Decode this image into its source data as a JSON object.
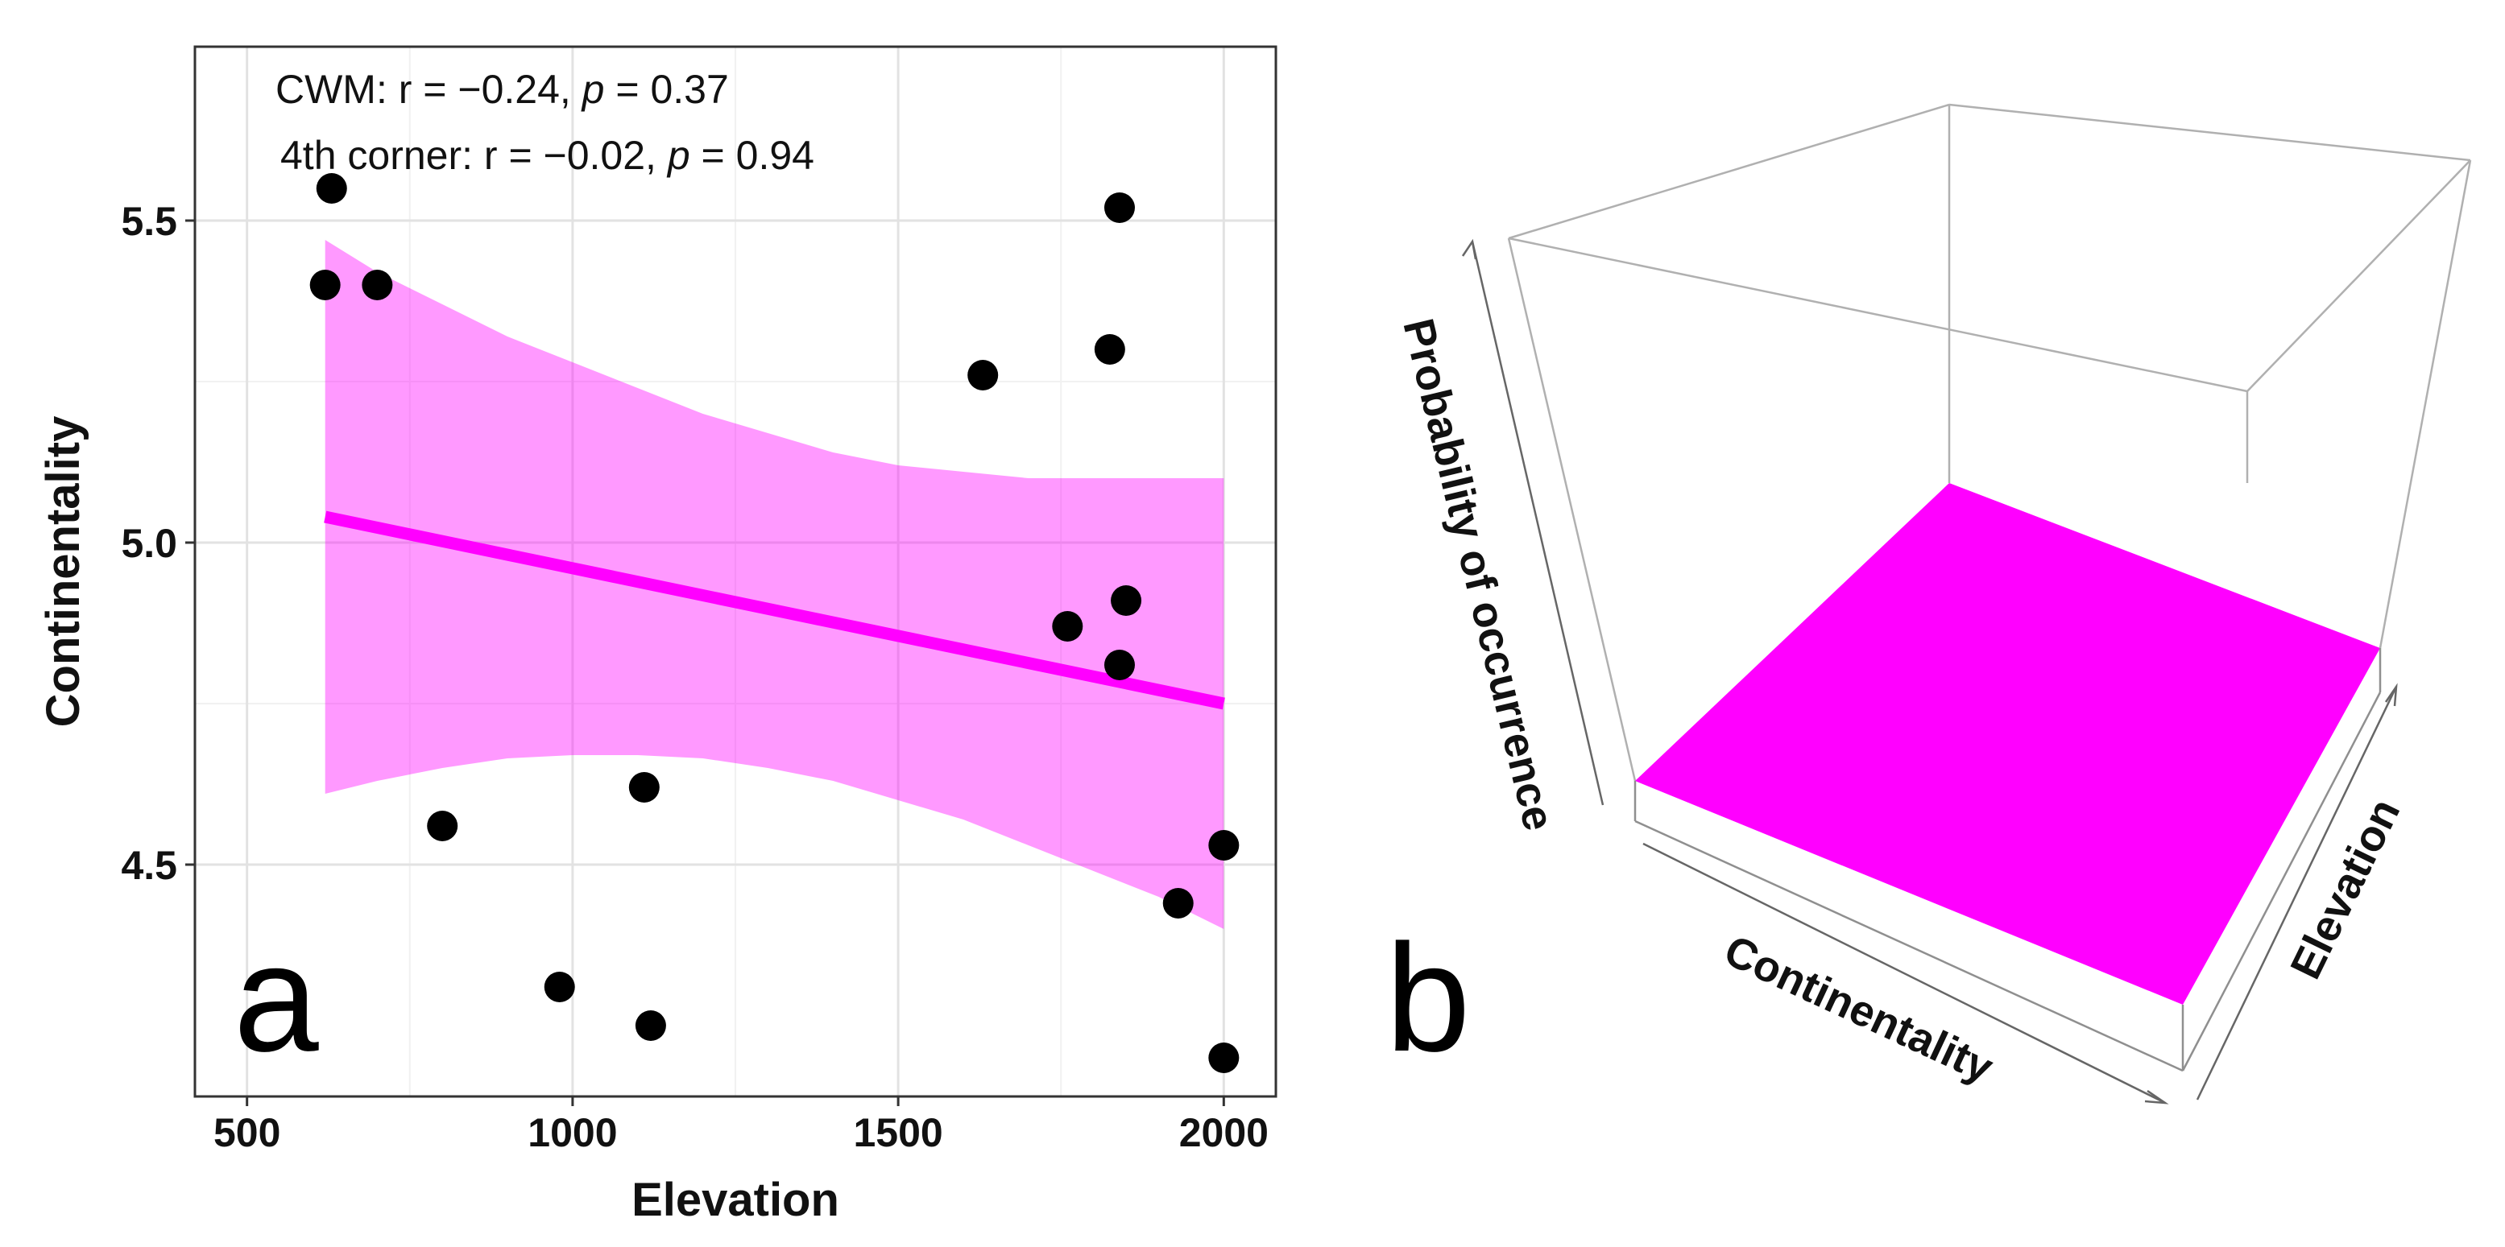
{
  "chart_data": [
    {
      "panel_label": "a",
      "type": "scatter",
      "xlabel": "Elevation",
      "ylabel": "Continentality",
      "xlim": [
        420,
        2080
      ],
      "ylim": [
        4.14,
        5.77
      ],
      "x_ticks": [
        500,
        1000,
        1500,
        2000
      ],
      "x_tick_labels": [
        "500",
        "1000",
        "1500",
        "2000"
      ],
      "y_ticks": [
        4.5,
        5.0,
        5.5
      ],
      "y_tick_labels": [
        "4.5",
        "5.0",
        "5.5"
      ],
      "grid": true,
      "annotations": {
        "line1_prefix": "CWM: r = −0.24, ",
        "line1_p": "p",
        "line1_suffix": " = 0.37",
        "line2_prefix": "4th corner: r = −0.02, ",
        "line2_p": "p",
        "line2_suffix": " = 0.94"
      },
      "points": [
        {
          "x": 630,
          "y": 5.55
        },
        {
          "x": 620,
          "y": 5.4
        },
        {
          "x": 700,
          "y": 5.4
        },
        {
          "x": 800,
          "y": 4.56
        },
        {
          "x": 980,
          "y": 4.31
        },
        {
          "x": 1110,
          "y": 4.62
        },
        {
          "x": 1120,
          "y": 4.25
        },
        {
          "x": 1630,
          "y": 5.26
        },
        {
          "x": 1760,
          "y": 4.87
        },
        {
          "x": 1825,
          "y": 5.3
        },
        {
          "x": 1840,
          "y": 5.52
        },
        {
          "x": 1840,
          "y": 4.81
        },
        {
          "x": 1850,
          "y": 4.91
        },
        {
          "x": 1930,
          "y": 4.44
        },
        {
          "x": 2000,
          "y": 4.53
        },
        {
          "x": 2000,
          "y": 4.2
        }
      ],
      "fit_line": {
        "x": [
          620,
          2000
        ],
        "y": [
          5.04,
          4.75
        ]
      },
      "confidence_band": {
        "x": [
          620,
          700,
          800,
          900,
          1000,
          1100,
          1200,
          1300,
          1400,
          1500,
          1600,
          1700,
          1800,
          1900,
          2000
        ],
        "lower": [
          4.61,
          4.63,
          4.65,
          4.665,
          4.67,
          4.67,
          4.665,
          4.65,
          4.63,
          4.6,
          4.57,
          4.53,
          4.49,
          4.45,
          4.4
        ],
        "upper": [
          5.47,
          5.42,
          5.37,
          5.32,
          5.28,
          5.24,
          5.2,
          5.17,
          5.14,
          5.12,
          5.11,
          5.1,
          5.1,
          5.1,
          5.1
        ]
      },
      "colors": {
        "points": "#000000",
        "fit": "#ff00ff",
        "band": "#ff00ff",
        "band_opacity": 0.4
      }
    },
    {
      "panel_label": "b",
      "type": "surface3d",
      "axis_labels": {
        "vertical": "Probability of occurrence",
        "front": "Continentality",
        "side": "Elevation"
      },
      "surface": "flat plane at the bottom of the box",
      "colors": {
        "surface": "#ff00ff",
        "box": "#9a9a9a"
      }
    }
  ]
}
